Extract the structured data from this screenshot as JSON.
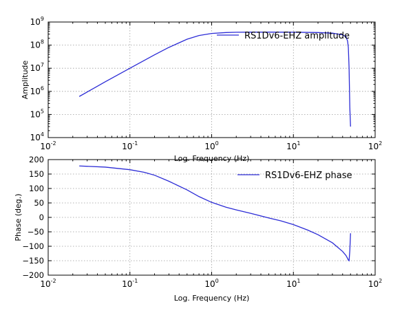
{
  "chart_data": [
    {
      "type": "line",
      "xscale": "log",
      "yscale": "log",
      "xlim": [
        0.01,
        100
      ],
      "ylim": [
        10000,
        1000000000
      ],
      "xlabel": "Log. Frequency (Hz)",
      "ylabel": "Amplitude",
      "grid": true,
      "legend_position": "top-right",
      "x_ticks": [
        0.01,
        0.1,
        1,
        10,
        100
      ],
      "x_tick_labels": [
        {
          "base": "10",
          "exp": "-2"
        },
        {
          "base": "10",
          "exp": "-1"
        },
        {
          "base": "10",
          "exp": "0"
        },
        {
          "base": "10",
          "exp": "1"
        },
        {
          "base": "10",
          "exp": "2"
        }
      ],
      "y_ticks": [
        10000,
        100000,
        1000000,
        10000000,
        100000000,
        1000000000
      ],
      "y_tick_labels": [
        {
          "base": "10",
          "exp": "4"
        },
        {
          "base": "10",
          "exp": "5"
        },
        {
          "base": "10",
          "exp": "6"
        },
        {
          "base": "10",
          "exp": "7"
        },
        {
          "base": "10",
          "exp": "8"
        },
        {
          "base": "10",
          "exp": "9"
        }
      ],
      "series": [
        {
          "name": "RS1Dv6-EHZ amplitude",
          "color": "#2b2bd6",
          "x": [
            0.024,
            0.05,
            0.1,
            0.2,
            0.3,
            0.5,
            0.7,
            1.0,
            1.5,
            2,
            3,
            5,
            10,
            20,
            30,
            40,
            44,
            46,
            47,
            48,
            49,
            50
          ],
          "y": [
            600000,
            2600000,
            10000000,
            38000000,
            80000000,
            180000000,
            260000000,
            320000000,
            350000000,
            360000000,
            365000000,
            365000000,
            362000000,
            350000000,
            330000000,
            280000000,
            230000000,
            150000000,
            80000000,
            10000000,
            200000,
            30000
          ]
        }
      ]
    },
    {
      "type": "line",
      "xscale": "log",
      "xlim": [
        0.01,
        100
      ],
      "ylim": [
        -200,
        200
      ],
      "xlabel": "Log. Frequency (Hz)",
      "ylabel": "Phase (deg.)",
      "grid": true,
      "legend_position": "top-right",
      "x_ticks": [
        0.01,
        0.1,
        1,
        10,
        100
      ],
      "x_tick_labels": [
        {
          "base": "10",
          "exp": "-2"
        },
        {
          "base": "10",
          "exp": "-1"
        },
        {
          "base": "10",
          "exp": "0"
        },
        {
          "base": "10",
          "exp": "1"
        },
        {
          "base": "10",
          "exp": "2"
        }
      ],
      "y_ticks": [
        -200,
        -150,
        -100,
        -50,
        0,
        50,
        100,
        150,
        200
      ],
      "y_tick_labels": [
        "−200",
        "−150",
        "−100",
        "−50",
        "0",
        "50",
        "100",
        "150",
        "200"
      ],
      "series": [
        {
          "name": "RS1Dv6-EHZ phase",
          "color": "#2b2bd6",
          "x": [
            0.024,
            0.05,
            0.1,
            0.15,
            0.2,
            0.3,
            0.5,
            0.7,
            1.0,
            1.5,
            2,
            3,
            5,
            7,
            10,
            15,
            20,
            30,
            40,
            44,
            46,
            47,
            48,
            49,
            50
          ],
          "y": [
            178,
            174,
            165,
            156,
            146,
            125,
            95,
            72,
            52,
            35,
            26,
            14,
            -2,
            -12,
            -25,
            -44,
            -60,
            -88,
            -118,
            -132,
            -142,
            -148,
            -150,
            -115,
            -55
          ]
        }
      ]
    }
  ]
}
